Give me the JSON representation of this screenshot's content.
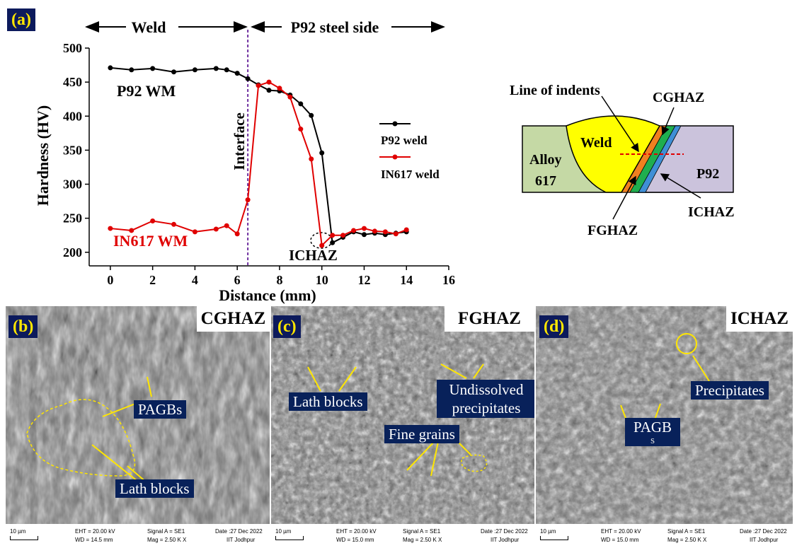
{
  "panel_a": {
    "tag": "(a)",
    "weld_label": "Weld",
    "steel_label": "P92 steel side",
    "interface_label": "Interface",
    "p92_wm_label": "P92 WM",
    "in617_wm_label": "IN617 WM",
    "ichaz_label": "ICHAZ",
    "colors": {
      "p92": "#000000",
      "in617": "#e00000",
      "interface": "#7030a0"
    }
  },
  "chart_data": {
    "type": "line",
    "xlabel": "Distance (mm)",
    "ylabel": "Hardness (HV)",
    "xlim": [
      -1,
      16
    ],
    "ylim": [
      180,
      500
    ],
    "xticks": [
      0,
      2,
      4,
      6,
      8,
      10,
      12,
      14,
      16
    ],
    "yticks": [
      200,
      250,
      300,
      350,
      400,
      450,
      500
    ],
    "interface_x": 6.5,
    "legend_placement": "right",
    "series": [
      {
        "name": "P92 weld",
        "color": "#000000",
        "x": [
          0,
          1,
          2,
          3,
          4,
          5,
          5.5,
          6,
          6.5,
          7,
          7.5,
          8,
          8.5,
          9,
          9.5,
          10,
          10.5,
          11,
          11.5,
          12,
          12.5,
          13,
          13.5,
          14
        ],
        "y": [
          471,
          468,
          470,
          465,
          468,
          470,
          468,
          463,
          455,
          446,
          438,
          437,
          431,
          418,
          401,
          346,
          214,
          222,
          230,
          226,
          228,
          226,
          228,
          230
        ]
      },
      {
        "name": "IN617 weld",
        "color": "#e00000",
        "x": [
          0,
          1,
          2,
          3,
          4,
          5,
          5.5,
          6,
          6.5,
          7,
          7.5,
          8,
          8.5,
          9,
          9.5,
          10,
          10.5,
          11,
          11.5,
          12,
          12.5,
          13,
          13.5,
          14
        ],
        "y": [
          235,
          232,
          246,
          241,
          230,
          234,
          239,
          227,
          277,
          445,
          450,
          441,
          428,
          381,
          337,
          210,
          225,
          225,
          232,
          235,
          231,
          230,
          227,
          233
        ]
      }
    ]
  },
  "schematic": {
    "line_of_indents": "Line of indents",
    "cghaz": "CGHAZ",
    "weld": "Weld",
    "alloy": "Alloy",
    "alloy_num": "617",
    "p92": "P92",
    "ichaz": "ICHAZ",
    "fghaz": "FGHAZ"
  },
  "panel_b": {
    "tag": "(b)",
    "title": "CGHAZ",
    "labels": [
      "PAGBs",
      "Lath blocks"
    ],
    "footer": {
      "scale": "10 µm",
      "eht": "EHT = 20.00 kV",
      "wd": "WD = 14.5 mm",
      "signal": "Signal A = SE1",
      "mag": "Mag =   2.50 K X",
      "date": "Date :27 Dec 2022",
      "inst": "IIT Jodhpur"
    }
  },
  "panel_c": {
    "tag": "(c)",
    "title": "FGHAZ",
    "labels": [
      "Lath blocks",
      "Undissolved",
      "precipitates",
      "Fine grains"
    ],
    "footer": {
      "scale": "10 µm",
      "eht": "EHT = 20.00 kV",
      "wd": "WD = 15.0 mm",
      "signal": "Signal A = SE1",
      "mag": "Mag =   2.50 K X",
      "date": "Date :27 Dec 2022",
      "inst": "IIT Jodhpur"
    }
  },
  "panel_d": {
    "tag": "(d)",
    "title": "ICHAZ",
    "labels": [
      "Precipitates",
      "PAGB",
      "s"
    ],
    "footer": {
      "scale": "10 µm",
      "eht": "EHT = 20.00 kV",
      "wd": "WD = 15.0 mm",
      "signal": "Signal A = SE1",
      "mag": "Mag =   2.50 K X",
      "date": "Date :27 Dec 2022",
      "inst": "IIT Jodhpur"
    }
  }
}
